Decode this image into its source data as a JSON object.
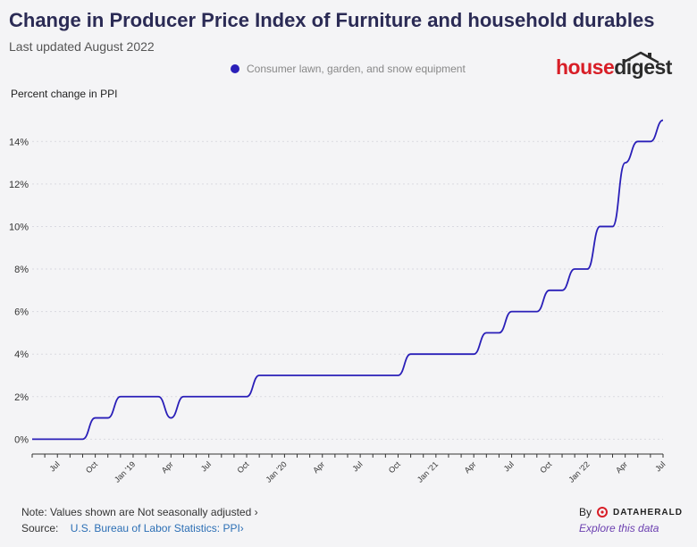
{
  "header": {
    "title": "Change in Producer Price Index of Furniture and household durables",
    "subtitle": "Last updated August 2022"
  },
  "logo": {
    "part1": "house",
    "part2": "digest"
  },
  "footer": {
    "note": "Note: Values shown are Not seasonally adjusted",
    "note_chevron": "›",
    "source_label": "Source:",
    "source_link": "U.S. Bureau of Labor Statistics: PPI",
    "source_chevron": "›",
    "by_label": "By",
    "by_brand": "DATAHERALD",
    "explore": "Explore this data"
  },
  "colors": {
    "line": "#2a1fb8",
    "brand_red": "#d81e27",
    "grid": "#d9d9e0"
  },
  "chart_data": {
    "type": "line",
    "title": "Change in Producer Price Index of Furniture and household durables",
    "ylabel": "Percent change in PPI",
    "xlabel": "",
    "ylim": [
      -0.7,
      15.4
    ],
    "xlim": [
      "2018-05",
      "2022-07"
    ],
    "yticks": [
      0,
      2,
      4,
      6,
      8,
      10,
      12,
      14
    ],
    "ytick_labels": [
      "0%",
      "2%",
      "4%",
      "6%",
      "8%",
      "10%",
      "12%",
      "14%"
    ],
    "xticks": [
      "2018-07",
      "2018-10",
      "2019-01",
      "2019-04",
      "2019-07",
      "2019-10",
      "2020-01",
      "2020-04",
      "2020-07",
      "2020-10",
      "2021-01",
      "2021-04",
      "2021-07",
      "2021-10",
      "2022-01",
      "2022-04",
      "2022-07"
    ],
    "xtick_labels": [
      "Jul",
      "Oct",
      "Jan '19",
      "Apr",
      "Jul",
      "Oct",
      "Jan '20",
      "Apr",
      "Jul",
      "Oct",
      "Jan '21",
      "Apr",
      "Jul",
      "Oct",
      "Jan '22",
      "Apr",
      "Jul"
    ],
    "grid": true,
    "legend_position": "top",
    "series": [
      {
        "name": "Consumer lawn, garden, and snow equipment",
        "color": "#2a1fb8",
        "x": [
          "2018-05",
          "2018-06",
          "2018-07",
          "2018-08",
          "2018-09",
          "2018-10",
          "2018-11",
          "2018-12",
          "2019-01",
          "2019-02",
          "2019-03",
          "2019-04",
          "2019-05",
          "2019-06",
          "2019-07",
          "2019-08",
          "2019-09",
          "2019-10",
          "2019-11",
          "2019-12",
          "2020-01",
          "2020-02",
          "2020-03",
          "2020-04",
          "2020-05",
          "2020-06",
          "2020-07",
          "2020-08",
          "2020-09",
          "2020-10",
          "2020-11",
          "2020-12",
          "2021-01",
          "2021-02",
          "2021-03",
          "2021-04",
          "2021-05",
          "2021-06",
          "2021-07",
          "2021-08",
          "2021-09",
          "2021-10",
          "2021-11",
          "2021-12",
          "2022-01",
          "2022-02",
          "2022-03",
          "2022-04",
          "2022-05",
          "2022-06",
          "2022-07"
        ],
        "values": [
          0,
          0,
          0,
          0,
          0,
          1,
          1,
          2,
          2,
          2,
          2,
          1,
          2,
          2,
          2,
          2,
          2,
          2,
          3,
          3,
          3,
          3,
          3,
          3,
          3,
          3,
          3,
          3,
          3,
          3,
          4,
          4,
          4,
          4,
          4,
          4,
          5,
          5,
          6,
          6,
          6,
          7,
          7,
          8,
          8,
          10,
          10,
          13,
          14,
          14,
          15
        ]
      }
    ]
  }
}
